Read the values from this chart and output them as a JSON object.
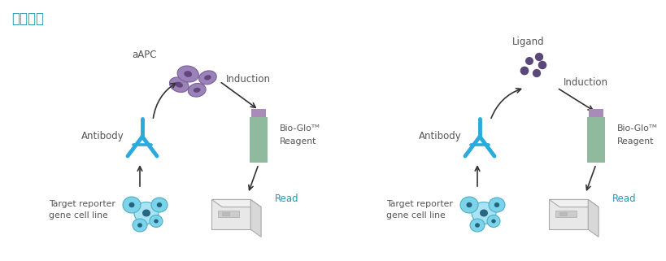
{
  "title": "实验流程",
  "title_color": "#2699b0",
  "title_fontsize": 12,
  "bg_color": "#ffffff",
  "left_panel": {
    "aapc_label": "aAPC",
    "induction_label": "Induction",
    "bioglo_label": "Bio-Gloᵀᴹ",
    "reagent_label": "Reagent",
    "antibody_label": "Antibody",
    "read_label": "Read",
    "target_label": "Target reporter\ngene cell line"
  },
  "right_panel": {
    "ligand_label": "Ligand",
    "induction_label": "Induction",
    "bioglo_label": "Bio-Gloᵀᴹ",
    "reagent_label": "Reagent",
    "antibody_label": "Antibody",
    "read_label": "Read",
    "target_label": "Target reporter\ngene cell line"
  },
  "arrow_color": "#333333",
  "cell_purple_body": "#9b82b8",
  "cell_purple_dark": "#5a3d72",
  "cell_purple_edge": "#7a5e9a",
  "cell_blue_body": "#7dd4e8",
  "cell_blue_light": "#aae4f2",
  "cell_blue_dark": "#1a5878",
  "cell_blue_edge": "#4aaec8",
  "antibody_color": "#2baadc",
  "reagent_body_color": "#8fba9e",
  "reagent_cap_color": "#a88bb8",
  "ligand_color": "#5a4878",
  "reader_face_color": "#e8e8e8",
  "reader_top_color": "#f0f0f0",
  "reader_edge_color": "#aaaaaa",
  "read_color": "#2699b0",
  "text_color": "#555555"
}
